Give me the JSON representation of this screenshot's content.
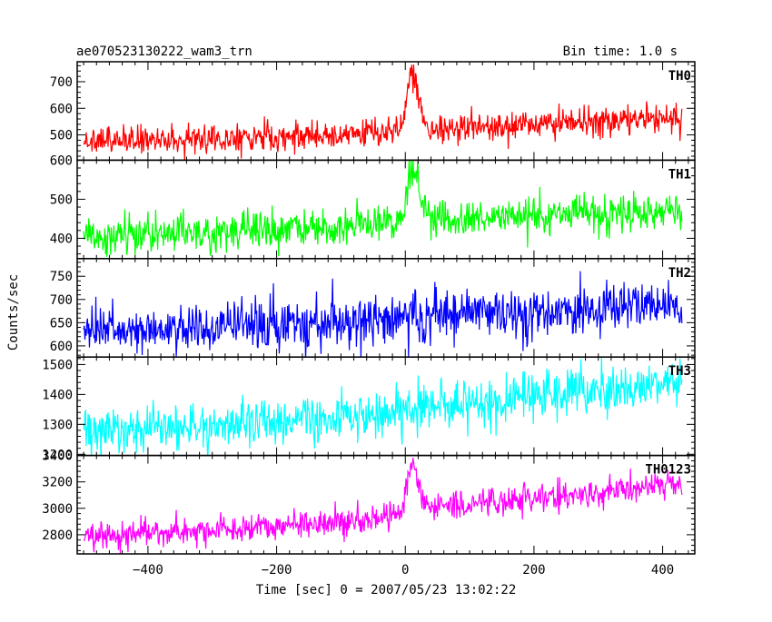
{
  "header": {
    "title_left": "ae070523130222_wam3_trn",
    "title_right": "Bin time: 1.0 s"
  },
  "chart_data": {
    "type": "line",
    "xlabel": "Time [sec] 0 = 2007/05/23 13:02:22",
    "ylabel": "Counts/sec",
    "xlim": [
      -510,
      450
    ],
    "xticks": [
      -400,
      -200,
      0,
      200,
      400
    ],
    "x_range": [
      -500,
      430
    ],
    "bin_time_s": 1.0,
    "panels": [
      {
        "name": "TH0",
        "color": "#ff0000",
        "ylim": [
          405,
          775
        ],
        "yticks": [
          500,
          600,
          700
        ],
        "baseline": [
          [
            -500,
            475
          ],
          [
            -300,
            485
          ],
          [
            -100,
            500
          ],
          [
            -10,
            515
          ],
          [
            30,
            520
          ],
          [
            200,
            540
          ],
          [
            430,
            565
          ]
        ],
        "noise_sd": 28,
        "peak": {
          "t": 10,
          "height": 220,
          "rise_s": 10,
          "decay_s": 15
        }
      },
      {
        "name": "TH1",
        "color": "#00ff00",
        "ylim": [
          348,
          600
        ],
        "yticks": [
          400,
          500,
          600
        ],
        "baseline": [
          [
            -500,
            405
          ],
          [
            -300,
            415
          ],
          [
            -100,
            430
          ],
          [
            -10,
            445
          ],
          [
            30,
            450
          ],
          [
            200,
            460
          ],
          [
            430,
            470
          ]
        ],
        "noise_sd": 24,
        "peak": {
          "t": 10,
          "height": 130,
          "rise_s": 10,
          "decay_s": 15
        }
      },
      {
        "name": "TH2",
        "color": "#0000ff",
        "ylim": [
          576,
          788
        ],
        "yticks": [
          600,
          650,
          700,
          750
        ],
        "baseline": [
          [
            -500,
            630
          ],
          [
            -300,
            640
          ],
          [
            -100,
            650
          ],
          [
            30,
            665
          ],
          [
            200,
            672
          ],
          [
            430,
            688
          ]
        ],
        "noise_sd": 26,
        "peak": null
      },
      {
        "name": "TH3",
        "color": "#00ffff",
        "ylim": [
          1196,
          1525
        ],
        "yticks": [
          1200,
          1300,
          1400,
          1500
        ],
        "baseline": [
          [
            -500,
            1280
          ],
          [
            -300,
            1295
          ],
          [
            -100,
            1320
          ],
          [
            30,
            1355
          ],
          [
            200,
            1390
          ],
          [
            430,
            1440
          ]
        ],
        "noise_sd": 38,
        "peak": null
      },
      {
        "name": "TH0123",
        "color": "#ff00ff",
        "ylim": [
          2655,
          3400
        ],
        "yticks": [
          2800,
          3000,
          3200,
          3400
        ],
        "baseline": [
          [
            -500,
            2790
          ],
          [
            -300,
            2830
          ],
          [
            -100,
            2900
          ],
          [
            -10,
            2960
          ],
          [
            30,
            3010
          ],
          [
            200,
            3070
          ],
          [
            430,
            3180
          ]
        ],
        "noise_sd": 55,
        "peak": {
          "t": 10,
          "height": 330,
          "rise_s": 10,
          "decay_s": 15
        }
      }
    ]
  }
}
